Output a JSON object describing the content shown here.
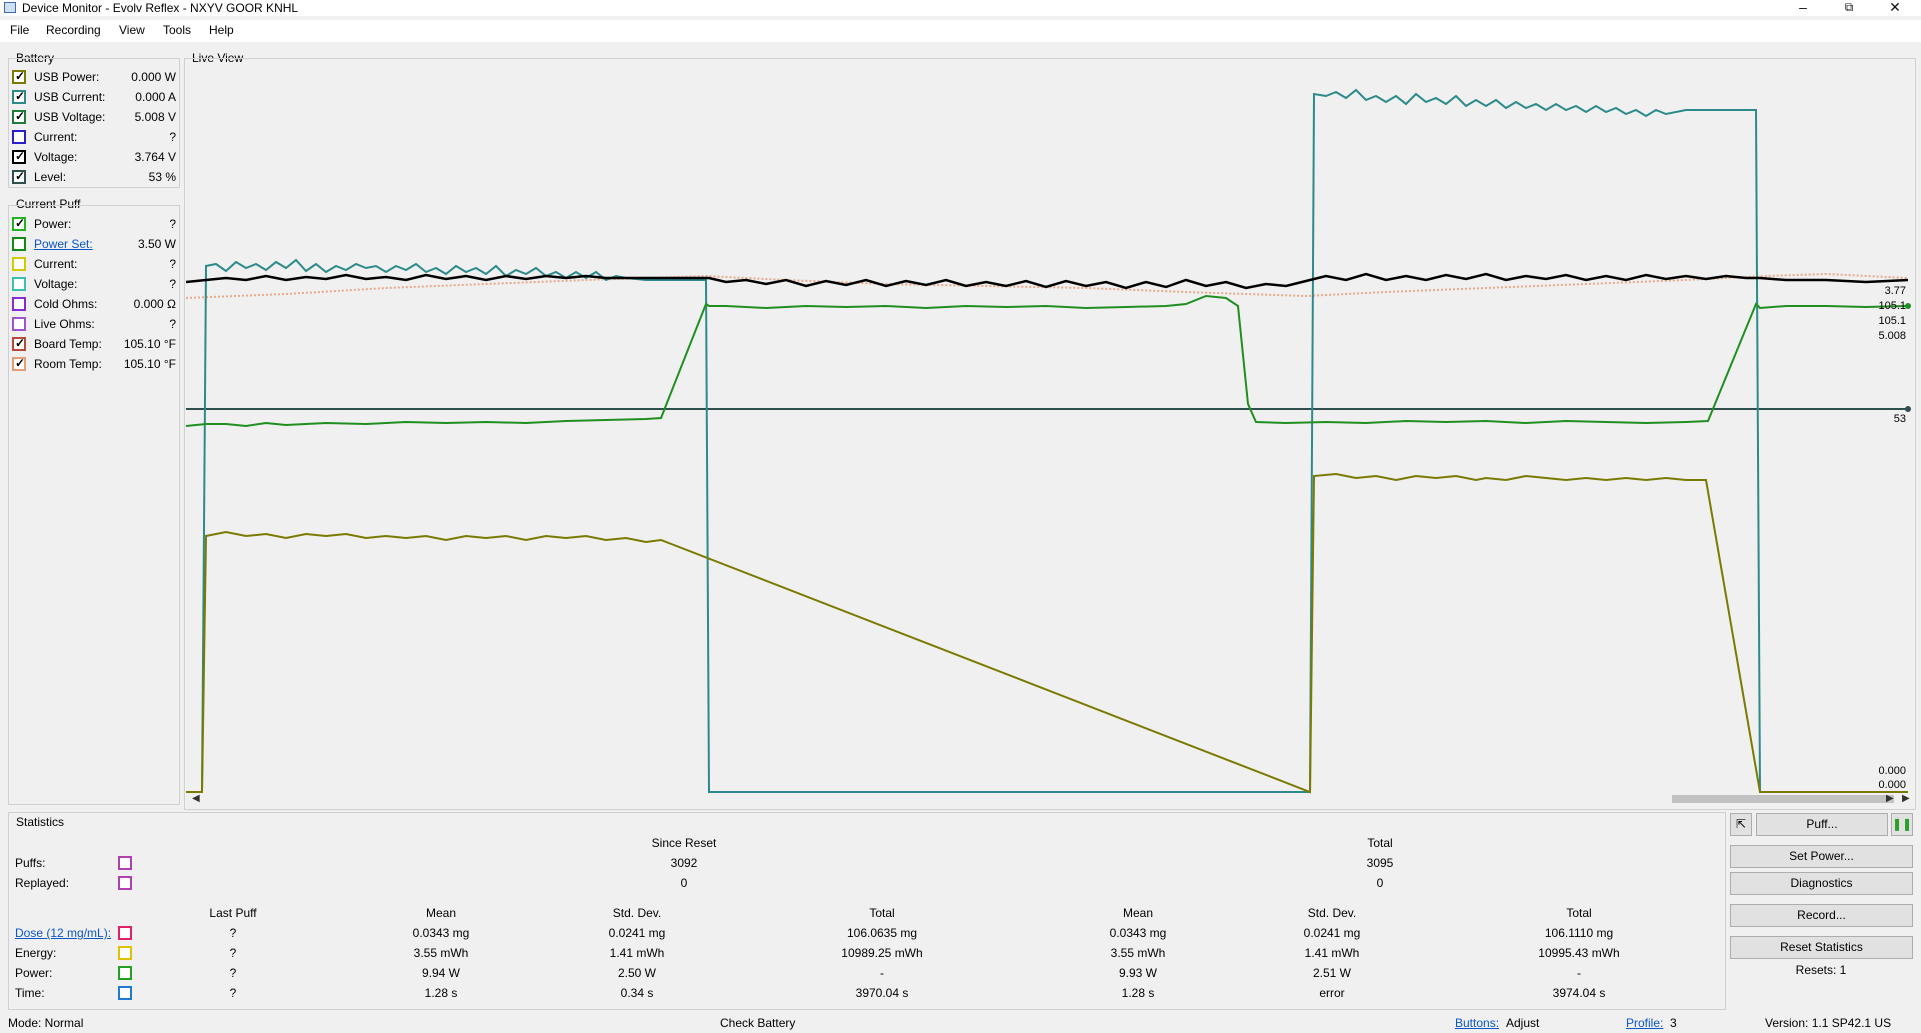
{
  "window": {
    "title": "Device Monitor - Evolv Reflex - NXYV GOOR KNHL"
  },
  "menu": [
    "File",
    "Recording",
    "View",
    "Tools",
    "Help"
  ],
  "battery": {
    "label": "Battery",
    "rows": [
      {
        "label": "USB Power:",
        "value": "0.000 W",
        "checked": true,
        "color": "#7a7a00"
      },
      {
        "label": "USB Current:",
        "value": "0.000 A",
        "checked": true,
        "color": "#2d8a8a"
      },
      {
        "label": "USB Voltage:",
        "value": "5.008 V",
        "checked": true,
        "color": "#1f7a3a"
      },
      {
        "label": "Current:",
        "value": "?",
        "checked": false,
        "color": "#2a1fd0"
      },
      {
        "label": "Voltage:",
        "value": "3.764 V",
        "checked": true,
        "color": "#000000"
      },
      {
        "label": "Level:",
        "value": "53 %",
        "checked": true,
        "color": "#2f4f4f"
      }
    ]
  },
  "current_puff": {
    "label": "Current Puff",
    "rows": [
      {
        "label": "Power:",
        "value": "?",
        "checked": true,
        "color": "#22b222"
      },
      {
        "label": "Power Set:",
        "value": "3.50 W",
        "checked": false,
        "color": "#138a13",
        "link": true
      },
      {
        "label": "Current:",
        "value": "?",
        "checked": false,
        "color": "#d6c800"
      },
      {
        "label": "Voltage:",
        "value": "?",
        "checked": false,
        "color": "#39c0b0"
      },
      {
        "label": "Cold Ohms:",
        "value": "0.000 Ω",
        "checked": false,
        "color": "#8a2bd6"
      },
      {
        "label": "Live Ohms:",
        "value": "?",
        "checked": false,
        "color": "#9a55d0"
      },
      {
        "label": "Board Temp:",
        "value": "105.10 °F",
        "checked": true,
        "color": "#b84a3a"
      },
      {
        "label": "Room Temp:",
        "value": "105.10 °F",
        "checked": true,
        "color": "#e0a070"
      }
    ]
  },
  "live_view": {
    "label": "Live View",
    "right_labels": [
      "3.77",
      "105.1",
      "105.1",
      "5.008",
      "53",
      "0.000",
      "0.000"
    ]
  },
  "chart_data": {
    "type": "line",
    "title": "",
    "grid": false,
    "x": [
      0,
      10,
      20,
      30,
      40,
      50,
      60,
      70,
      80,
      90,
      100
    ],
    "series": [
      {
        "color": "#2d8a8a",
        "values": [
          0,
          1.1,
          1.1,
          1.1,
          0,
          0,
          0,
          2.0,
          2.0,
          2.0,
          0
        ]
      },
      {
        "color": "#000000",
        "values": [
          3.76,
          3.77,
          3.77,
          3.76,
          3.76,
          3.76,
          3.77,
          3.77,
          3.77,
          3.77,
          3.77
        ]
      },
      {
        "color": "#1f8f1f",
        "values": [
          5.0,
          5.0,
          5.0,
          5.0,
          5.6,
          5.6,
          5.6,
          5.0,
          5.0,
          5.0,
          5.6
        ]
      },
      {
        "color": "#7a7a00",
        "values": [
          0,
          1.0,
          1.0,
          1.0,
          null,
          null,
          null,
          1.3,
          1.3,
          1.3,
          0
        ]
      }
    ]
  },
  "statistics": {
    "label": "Statistics",
    "since_reset": "Since Reset",
    "total": "Total",
    "puffs": {
      "label": "Puffs:",
      "since": "3092",
      "total": "3095",
      "color": "#b040b0"
    },
    "replayed": {
      "label": "Replayed:",
      "since": "0",
      "total": "0",
      "color": "#b040b0"
    },
    "columns": [
      "Last Puff",
      "Mean",
      "Std. Dev.",
      "Total",
      "Mean",
      "Std. Dev.",
      "Total"
    ],
    "rows": [
      {
        "label": "Dose (12 mg/mL):",
        "link": true,
        "color": "#e0206a",
        "cells": [
          "?",
          "0.0343 mg",
          "0.0241 mg",
          "106.0635 mg",
          "0.0343 mg",
          "0.0241 mg",
          "106.1110 mg"
        ]
      },
      {
        "label": "Energy:",
        "color": "#e0c000",
        "cells": [
          "?",
          "3.55 mWh",
          "1.41 mWh",
          "10989.25 mWh",
          "3.55 mWh",
          "1.41 mWh",
          "10995.43 mWh"
        ]
      },
      {
        "label": "Power:",
        "color": "#22a022",
        "cells": [
          "?",
          "9.94 W",
          "2.50 W",
          "-",
          "9.93 W",
          "2.51 W",
          "-"
        ]
      },
      {
        "label": "Time:",
        "color": "#1f7ad6",
        "cells": [
          "?",
          "1.28 s",
          "0.34 s",
          "3970.04 s",
          "1.28 s",
          "error",
          "3974.04 s"
        ]
      }
    ]
  },
  "buttons": {
    "puff": "Puff...",
    "set_power": "Set Power...",
    "diagnostics": "Diagnostics",
    "record": "Record...",
    "reset_statistics": "Reset Statistics",
    "resets": "Resets: 1"
  },
  "status": {
    "mode": "Mode: Normal",
    "check_battery": "Check Battery",
    "buttons_label": "Buttons:",
    "buttons_value": "Adjust",
    "profile_label": "Profile:",
    "profile_value": "3",
    "version": "Version: 1.1 SP42.1 US"
  }
}
